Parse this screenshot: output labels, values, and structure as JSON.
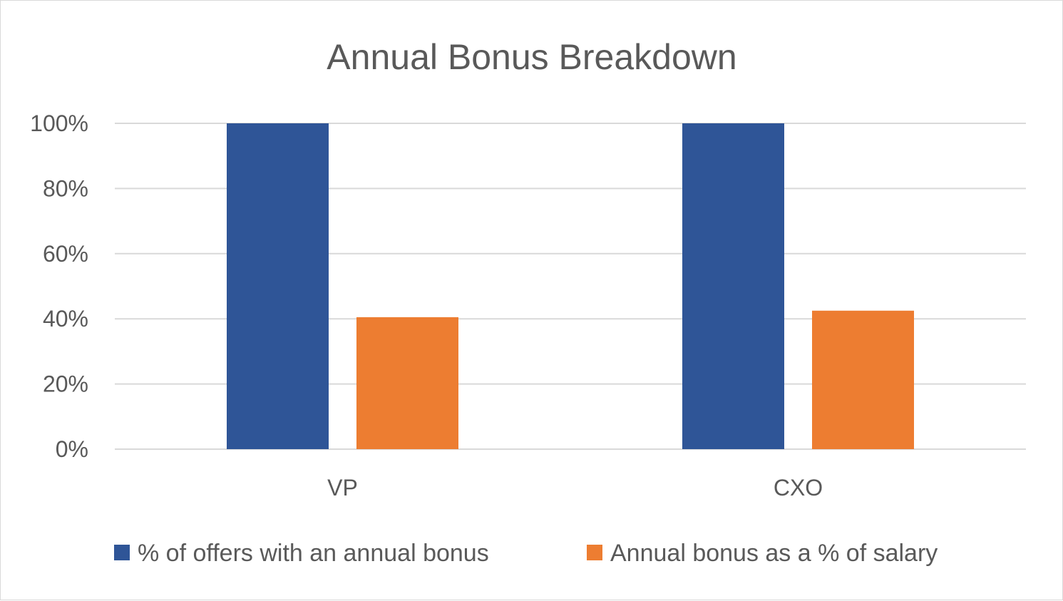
{
  "chart_data": {
    "type": "bar",
    "title": "Annual Bonus Breakdown",
    "xlabel": "",
    "ylabel": "",
    "categories": [
      "VP",
      "CXO"
    ],
    "series": [
      {
        "name": "% of offers with an annual bonus",
        "values": [
          100,
          100
        ],
        "color": "#2f5597"
      },
      {
        "name": "Annual bonus as a % of salary",
        "values": [
          40.5,
          42.5
        ],
        "color": "#ed7d31"
      }
    ],
    "ylim": [
      0,
      100
    ],
    "y_ticks": [
      "0%",
      "20%",
      "40%",
      "60%",
      "80%",
      "100%"
    ],
    "y_tick_values": [
      0,
      20,
      40,
      60,
      80,
      100
    ],
    "grid": true,
    "gridline_color": "#d9d9d9",
    "legend_position": "bottom"
  }
}
